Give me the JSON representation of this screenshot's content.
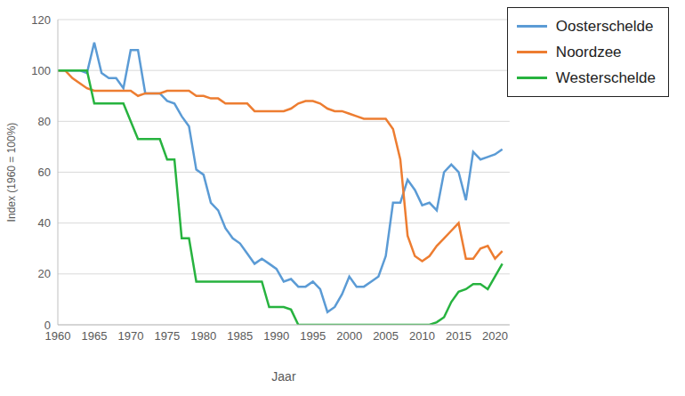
{
  "chart_data": {
    "type": "line",
    "x_label": "Jaar",
    "y_label": "Index (1960 = 100%)",
    "x": [
      1960,
      1961,
      1962,
      1963,
      1964,
      1965,
      1966,
      1967,
      1968,
      1969,
      1970,
      1971,
      1972,
      1973,
      1974,
      1975,
      1976,
      1977,
      1978,
      1979,
      1980,
      1981,
      1982,
      1983,
      1984,
      1985,
      1986,
      1987,
      1988,
      1989,
      1990,
      1991,
      1992,
      1993,
      1994,
      1995,
      1996,
      1997,
      1998,
      1999,
      2000,
      2001,
      2002,
      2003,
      2004,
      2005,
      2006,
      2007,
      2008,
      2009,
      2010,
      2011,
      2012,
      2013,
      2014,
      2015,
      2016,
      2017,
      2018,
      2019,
      2020,
      2021
    ],
    "series": [
      {
        "name": "Oosterschelde",
        "color": "#5b9bd5",
        "values": [
          100,
          100,
          100,
          100,
          99,
          111,
          99,
          97,
          97,
          93,
          108,
          108,
          91,
          91,
          91,
          88,
          87,
          82,
          78,
          61,
          59,
          48,
          45,
          38,
          34,
          32,
          28,
          24,
          26,
          24,
          22,
          17,
          18,
          15,
          15,
          17,
          14,
          5,
          7,
          12,
          19,
          15,
          15,
          17,
          19,
          27,
          48,
          48,
          57,
          53,
          47,
          48,
          45,
          60,
          63,
          60,
          49,
          68,
          65,
          66,
          67,
          69
        ]
      },
      {
        "name": "Noordzee",
        "color": "#ed7d31",
        "values": [
          100,
          100,
          97,
          95,
          93,
          92,
          92,
          92,
          92,
          92,
          92,
          90,
          91,
          91,
          91,
          92,
          92,
          92,
          92,
          90,
          90,
          89,
          89,
          87,
          87,
          87,
          87,
          84,
          84,
          84,
          84,
          84,
          85,
          87,
          88,
          88,
          87,
          85,
          84,
          84,
          83,
          82,
          81,
          81,
          81,
          81,
          77,
          65,
          35,
          27,
          25,
          27,
          31,
          34,
          37,
          40,
          26,
          26,
          30,
          31,
          26,
          29
        ]
      },
      {
        "name": "Westerschelde",
        "color": "#27b33f",
        "values": [
          100,
          100,
          100,
          100,
          100,
          87,
          87,
          87,
          87,
          87,
          80,
          73,
          73,
          73,
          73,
          65,
          65,
          34,
          34,
          17,
          17,
          17,
          17,
          17,
          17,
          17,
          17,
          17,
          17,
          7,
          7,
          7,
          6,
          0,
          0,
          0,
          0,
          0,
          0,
          0,
          0,
          0,
          0,
          0,
          0,
          0,
          0,
          0,
          0,
          0,
          0,
          0,
          1,
          3,
          9,
          13,
          14,
          16,
          16,
          14,
          19,
          24
        ]
      }
    ],
    "xlim": [
      1960,
      2022
    ],
    "xticks": [
      1960,
      1965,
      1970,
      1975,
      1980,
      1985,
      1990,
      1995,
      2000,
      2005,
      2010,
      2015,
      2020
    ],
    "ylim": [
      0,
      120
    ],
    "yticks": [
      0,
      20,
      40,
      60,
      80,
      100,
      120
    ],
    "grid": true,
    "legend": "top-right"
  }
}
